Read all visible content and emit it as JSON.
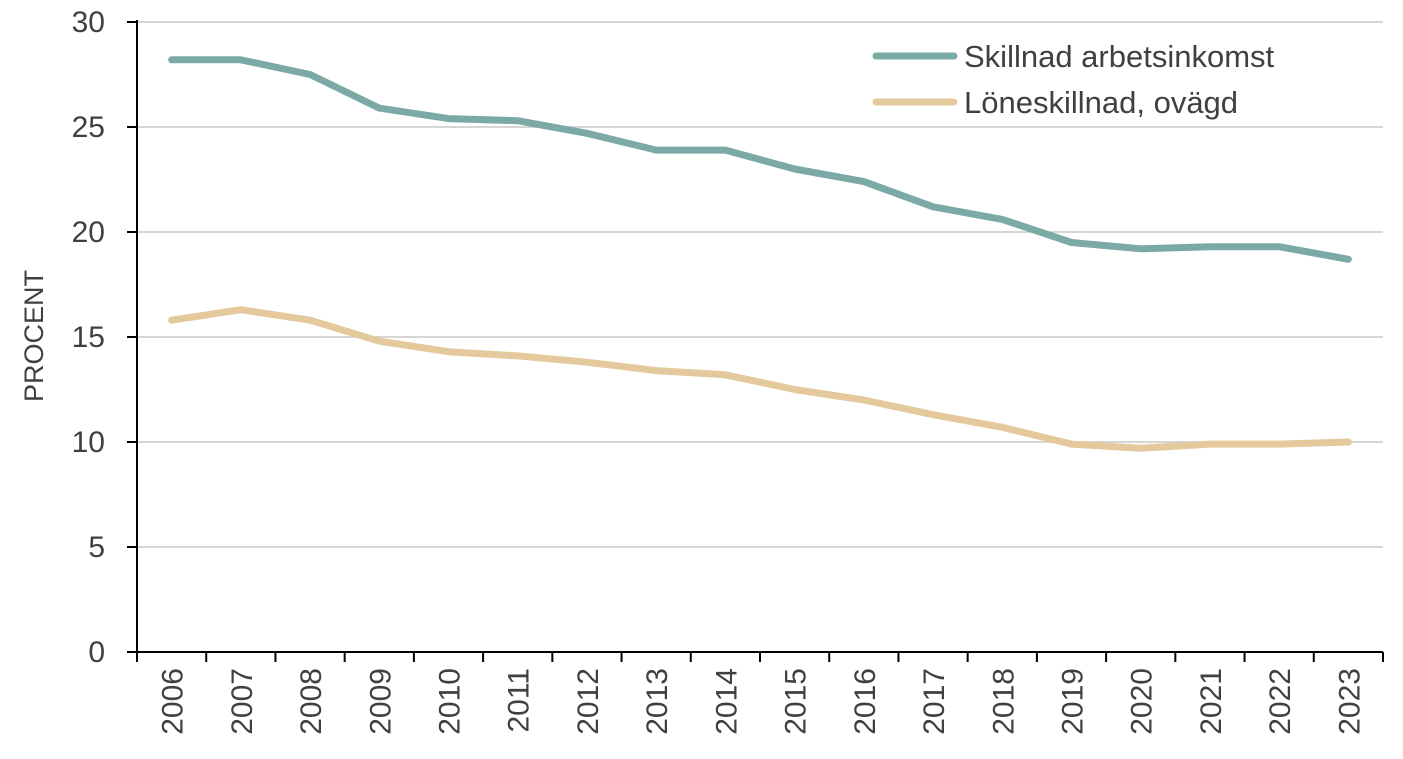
{
  "chart_data": {
    "type": "line",
    "title": "",
    "xlabel": "",
    "ylabel": "PROCENT",
    "ylim": [
      0,
      30
    ],
    "yticks": [
      0,
      5,
      10,
      15,
      20,
      25,
      30
    ],
    "grid": true,
    "legend_position": "top-right",
    "categories": [
      "2006",
      "2007",
      "2008",
      "2009",
      "2010",
      "2011",
      "2012",
      "2013",
      "2014",
      "2015",
      "2016",
      "2017",
      "2018",
      "2019",
      "2020",
      "2021",
      "2022",
      "2023"
    ],
    "series": [
      {
        "name": "Skillnad arbetsinkomst",
        "color": "#7aa9a6",
        "values": [
          28.2,
          28.2,
          27.5,
          25.9,
          25.4,
          25.3,
          24.7,
          23.9,
          23.9,
          23.0,
          22.4,
          21.2,
          20.6,
          19.5,
          19.2,
          19.3,
          19.3,
          18.7
        ]
      },
      {
        "name": "Löneskillnad, ovägd",
        "color": "#e4c99c",
        "values": [
          15.8,
          16.3,
          15.8,
          14.8,
          14.3,
          14.1,
          13.8,
          13.4,
          13.2,
          12.5,
          12.0,
          11.3,
          10.7,
          9.9,
          9.7,
          9.9,
          9.9,
          10.0
        ]
      }
    ]
  }
}
